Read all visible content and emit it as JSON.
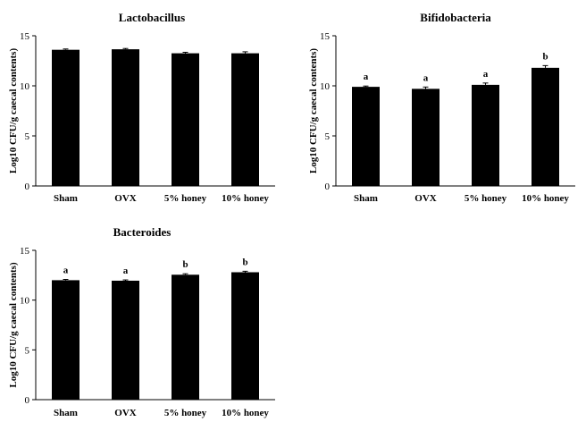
{
  "colors": {
    "bar": "#000000",
    "axis": "#000000",
    "background": "#ffffff"
  },
  "chart_data": [
    {
      "type": "bar",
      "title": "Lactobacillus",
      "ylabel": "Log10 CFU/g caecal contents)",
      "categories": [
        "Sham",
        "OVX",
        "5% honey",
        "10% honey"
      ],
      "values": [
        13.6,
        13.65,
        13.25,
        13.25
      ],
      "errors": [
        0.08,
        0.08,
        0.1,
        0.15
      ],
      "significance": [
        "",
        "",
        "",
        ""
      ],
      "ylim": [
        0,
        15
      ],
      "yticks": [
        "0",
        "5",
        "10",
        "15"
      ]
    },
    {
      "type": "bar",
      "title": "Bifidobacteria",
      "ylabel": "Log10 CFU/g caecal contents)",
      "categories": [
        "Sham",
        "OVX",
        "5% honey",
        "10% honey"
      ],
      "values": [
        9.9,
        9.7,
        10.1,
        11.8
      ],
      "errors": [
        0.08,
        0.18,
        0.18,
        0.22
      ],
      "significance": [
        "a",
        "a",
        "a",
        "b"
      ],
      "ylim": [
        0,
        15
      ],
      "yticks": [
        "0",
        "5",
        "10",
        "15"
      ]
    },
    {
      "type": "bar",
      "title": "Bacteroides",
      "ylabel": "Log10 CFU/g caecal contents)",
      "categories": [
        "Sham",
        "OVX",
        "5% honey",
        "10% honey"
      ],
      "values": [
        12.0,
        11.95,
        12.55,
        12.8
      ],
      "errors": [
        0.08,
        0.08,
        0.1,
        0.1
      ],
      "significance": [
        "a",
        "a",
        "b",
        "b"
      ],
      "ylim": [
        0,
        15
      ],
      "yticks": [
        "0",
        "5",
        "10",
        "15"
      ]
    }
  ]
}
